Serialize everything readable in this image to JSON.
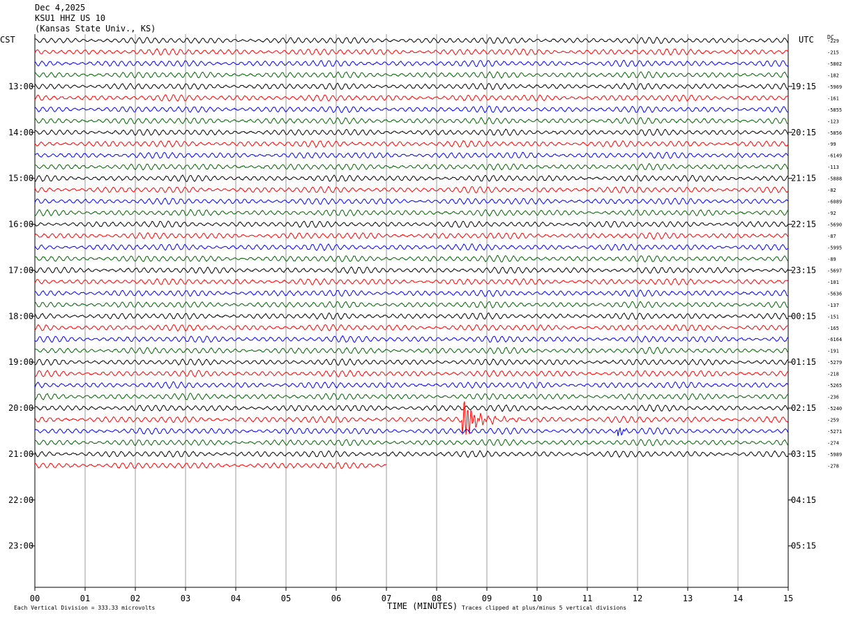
{
  "header": {
    "date": "Dec 4,2025",
    "station": "KSU1 HHZ US 10",
    "location": "(Kansas State Univ., KS)"
  },
  "left_tz": "CST",
  "right_tz": "UTC",
  "dc_label": "DC",
  "chart_data": {
    "type": "line",
    "xlabel": "TIME (MINUTES)",
    "x_ticks": [
      "00",
      "01",
      "02",
      "03",
      "04",
      "05",
      "06",
      "07",
      "08",
      "09",
      "10",
      "11",
      "12",
      "13",
      "14",
      "15"
    ],
    "xlim": [
      0,
      15
    ],
    "left_hour_labels": [
      "13:00",
      "14:00",
      "15:00",
      "16:00",
      "17:00",
      "18:00",
      "19:00",
      "20:00",
      "21:00",
      "22:00",
      "23:00"
    ],
    "right_hour_labels": [
      "19:15",
      "20:15",
      "21:15",
      "22:15",
      "23:15",
      "00:15",
      "01:15",
      "02:15",
      "03:15",
      "04:15",
      "05:15"
    ],
    "trace_colors": [
      "#000000",
      "#ff0000",
      "#0000ff",
      "#006400"
    ],
    "dc_offsets": [
      "-229",
      "-215",
      "-5802",
      "-182",
      "-5969",
      "-161",
      "-5855",
      "-123",
      "-5856",
      "-99",
      "-6149",
      "-113",
      "-5888",
      "-82",
      "-6089",
      "-92",
      "-5690",
      "-87",
      "-5995",
      "-89",
      "-5697",
      "-101",
      "-5636",
      "-137",
      "-151",
      "-165",
      "-6164",
      "-191",
      "-5279",
      "-218",
      "-5265",
      "-236",
      "-5240",
      "-259",
      "-5271",
      "-274",
      "-5989",
      "-278"
    ],
    "trace_count": 38,
    "complete_traces": 37,
    "last_trace_end_minute": 7.0,
    "events": [
      {
        "trace_index": 33,
        "minute": 8.5,
        "amplitude": "clipped"
      },
      {
        "trace_index": 34,
        "minute": 11.6,
        "amplitude": "small"
      }
    ]
  },
  "footer": {
    "scale": "Each Vertical Division =  333.33 microvolts",
    "clip_note": "Traces clipped at plus/minus 5 vertical divisions"
  }
}
